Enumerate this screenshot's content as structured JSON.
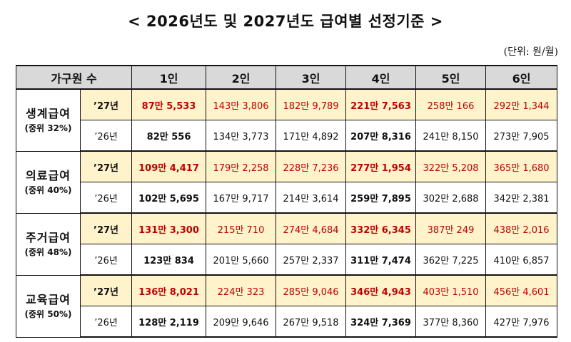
{
  "title": "< 2026년도 및 2027년도 급여별 선정기준 >",
  "unit": "(단위: 원/월)",
  "header": {
    "household": "가구원 수",
    "cols": [
      "1인",
      "2인",
      "3인",
      "4인",
      "5인",
      "6인"
    ]
  },
  "groups": [
    {
      "name": "생계급여",
      "sub": "(중위 32%)",
      "rows": [
        {
          "year": "’27년",
          "values": [
            "87만 5,533",
            "143만 3,806",
            "182만 9,789",
            "221만 7,563",
            "258만 166",
            "292만 1,344"
          ]
        },
        {
          "year": "’26년",
          "values": [
            "82만 556",
            "134만 3,773",
            "171만 4,892",
            "207만 8,316",
            "241만 8,150",
            "273만 7,905"
          ]
        }
      ]
    },
    {
      "name": "의료급여",
      "sub": "(중위 40%)",
      "rows": [
        {
          "year": "’27년",
          "values": [
            "109만 4,417",
            "179만 2,258",
            "228만 7,236",
            "277만 1,954",
            "322만 5,208",
            "365만 1,680"
          ]
        },
        {
          "year": "’26년",
          "values": [
            "102만 5,695",
            "167만 9,717",
            "214만 3,614",
            "259만 7,895",
            "302만 2,688",
            "342만 2,381"
          ]
        }
      ]
    },
    {
      "name": "주거급여",
      "sub": "(중위 48%)",
      "rows": [
        {
          "year": "’27년",
          "values": [
            "131만 3,300",
            "215만 710",
            "274만 4,684",
            "332만 6,345",
            "387만 249",
            "438만 2,016"
          ]
        },
        {
          "year": "’26년",
          "values": [
            "123만 834",
            "201만 5,660",
            "257만 2,337",
            "311만 7,474",
            "362만 7,225",
            "410만 6,857"
          ]
        }
      ]
    },
    {
      "name": "교육급여",
      "sub": "(중위 50%)",
      "rows": [
        {
          "year": "’27년",
          "values": [
            "136만 8,021",
            "224만 323",
            "285만 9,046",
            "346만 4,943",
            "403만 1,510",
            "456만 4,601"
          ]
        },
        {
          "year": "’26년",
          "values": [
            "128만 2,119",
            "209만 9,646",
            "267만 9,518",
            "324만 7,369",
            "377만 8,360",
            "427만 7,976"
          ]
        }
      ]
    }
  ],
  "colors": {
    "header_bg": "#d9d9d9",
    "row27_bg": "#fff3cc",
    "row27_text": "#c00000"
  }
}
